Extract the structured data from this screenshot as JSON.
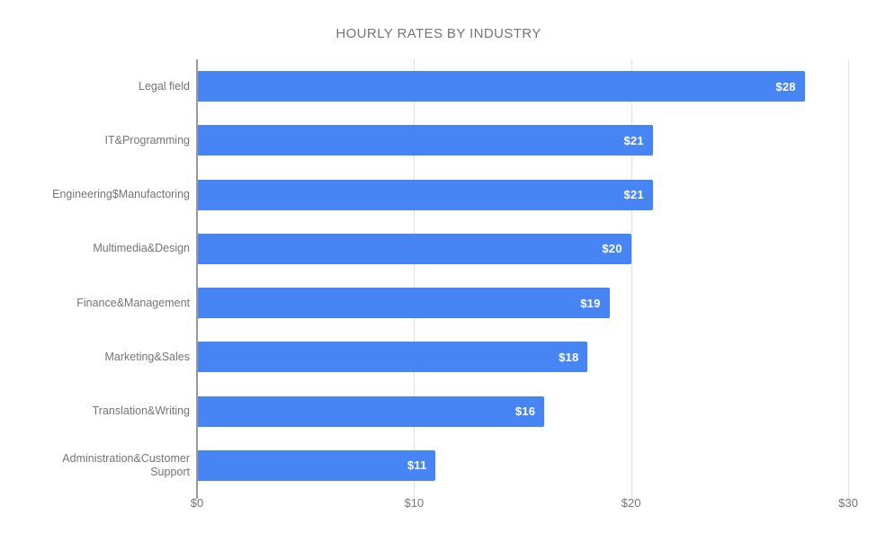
{
  "chart_data": {
    "type": "bar",
    "orientation": "horizontal",
    "title": "HOURLY RATES BY INDUSTRY",
    "categories": [
      "Legal field",
      "IT&Programming",
      "Engineering$Manufactoring",
      "Multimedia&Design",
      "Finance&Management",
      "Marketing&Sales",
      "Translation&Writing",
      "Administration&Customer Support"
    ],
    "values": [
      28,
      21,
      21,
      20,
      19,
      18,
      16,
      11
    ],
    "value_labels": [
      "$28",
      "$21",
      "$21",
      "$20",
      "$19",
      "$18",
      "$16",
      "$11"
    ],
    "x_ticks": [
      {
        "label": "$0",
        "value": 0
      },
      {
        "label": "$10",
        "value": 10
      },
      {
        "label": "$20",
        "value": 20
      },
      {
        "label": "$30",
        "value": 30
      }
    ],
    "xlim": [
      0,
      30
    ],
    "xlabel": "",
    "ylabel": "",
    "grid": true,
    "legend_position": "none",
    "colors": {
      "bar": "#4685f3",
      "text": "#757575",
      "gridline": "#e0e0e0",
      "axis_line": "#9a9a9a",
      "value_label": "#ffffff",
      "background": "#ffffff"
    }
  }
}
